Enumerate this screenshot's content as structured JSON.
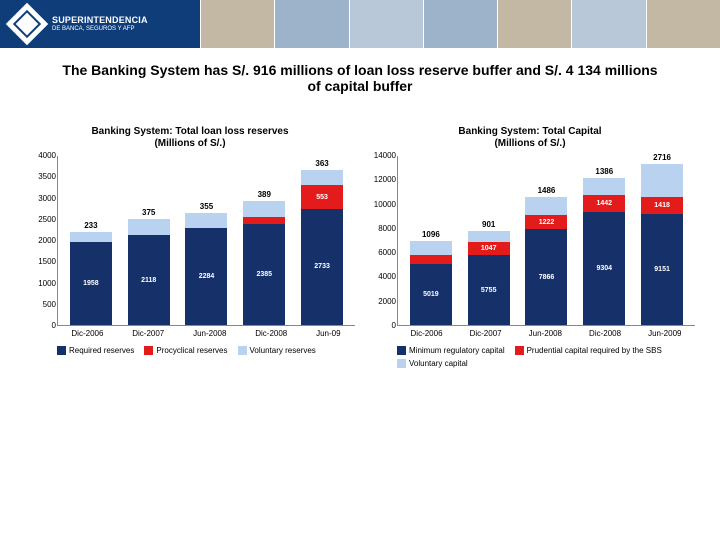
{
  "header": {
    "org_line1": "SUPERINTENDENCIA",
    "org_line2": "DE BANCA, SEGUROS Y AFP"
  },
  "title": "The Banking System has S/. 916 millions of loan loss reserve buffer and S/. 4 134 millions of capital buffer",
  "colors": {
    "navy": "#16316a",
    "red": "#e41b1b",
    "lightblue": "#b9d2ef",
    "axis": "#888888",
    "bg": "#ffffff"
  },
  "chart_left": {
    "title_l1": "Banking System: Total loan loss reserves",
    "title_l2": "(Millions of S/.)",
    "ymax": 4000,
    "ytick_step": 500,
    "categories": [
      "Dic-2006",
      "Dic-2007",
      "Jun-2008",
      "Dic-2008",
      "Jun-09"
    ],
    "series": [
      {
        "name": "Required reserves",
        "color": "#16316a",
        "values": [
          1958,
          2118,
          2284,
          2385,
          2733
        ]
      },
      {
        "name": "Procyclical reserves",
        "color": "#e41b1b",
        "values": [
          0,
          0,
          0,
          154,
          553
        ]
      },
      {
        "name": "Voluntary reserves",
        "color": "#b9d2ef",
        "values": [
          233,
          375,
          355,
          389,
          363
        ]
      }
    ]
  },
  "chart_right": {
    "title_l1": "Banking System: Total Capital",
    "title_l2": "(Millions of S/.)",
    "ymax": 14000,
    "ytick_step": 2000,
    "categories": [
      "Dic-2006",
      "Dic-2007",
      "Jun-2008",
      "Dic-2008",
      "Jun-2009"
    ],
    "series": [
      {
        "name": "Minimum regulatory capital",
        "color": "#16316a",
        "values": [
          5019,
          5755,
          7866,
          9304,
          9151
        ]
      },
      {
        "name": "Prudential capital required by the SBS",
        "color": "#e41b1b",
        "values": [
          778,
          1047,
          1222,
          1442,
          1418
        ]
      },
      {
        "name": "Voluntary capital",
        "color": "#b9d2ef",
        "values": [
          1096,
          901,
          1486,
          1386,
          2716
        ]
      }
    ]
  }
}
